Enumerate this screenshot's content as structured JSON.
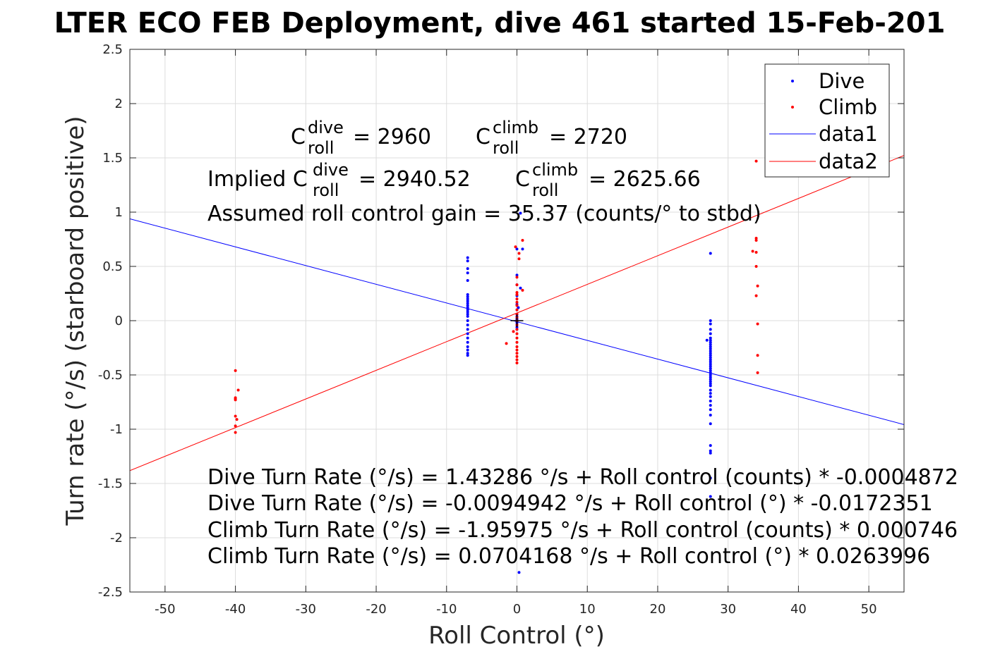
{
  "chart_data": {
    "type": "scatter",
    "title": "...LTER ECO FEB Deployment, dive 461 started 15-Feb-201...",
    "title_visible": "LTER ECO FEB Deployment, dive 461 started 15-Feb-201",
    "xlabel": "Roll Control (°)",
    "ylabel": "Turn rate (°/s) (starboard positive)",
    "xlim": [
      -55,
      55
    ],
    "ylim": [
      -2.5,
      2.5
    ],
    "xticks": [
      -50,
      -40,
      -30,
      -20,
      -10,
      0,
      10,
      20,
      30,
      40,
      50
    ],
    "xtick_labels": [
      "-50",
      "-40",
      "-30",
      "-20",
      "-10",
      "0",
      "10",
      "20",
      "30",
      "40",
      "50"
    ],
    "yticks": [
      2.5,
      2,
      1.5,
      1,
      0.5,
      0,
      -0.5,
      -1,
      -1.5,
      -2,
      -2.5
    ],
    "ytick_labels": [
      "2.5",
      "2",
      "1.5",
      "1",
      "0.5",
      "0",
      "-0.5",
      "-1",
      "-1.5",
      "-2",
      "-2.5"
    ],
    "grid": true,
    "legend_position": "top-right",
    "legend": [
      "Dive",
      "Climb",
      "data1",
      "data2"
    ],
    "colors": {
      "dive": "#0000ff",
      "climb": "#ff0000",
      "grid": "#dcdcdc",
      "axis": "#262626"
    },
    "series": [
      {
        "name": "Dive",
        "kind": "points",
        "color": "#0000ff",
        "points": [
          [
            -7,
            0.58
          ],
          [
            -7,
            0.55
          ],
          [
            -7,
            0.48
          ],
          [
            -7,
            0.44
          ],
          [
            -7,
            0.37
          ],
          [
            -7,
            0.24
          ],
          [
            -7,
            0.22
          ],
          [
            -7,
            0.2
          ],
          [
            -7,
            0.18
          ],
          [
            -7,
            0.16
          ],
          [
            -7,
            0.14
          ],
          [
            -7,
            0.12
          ],
          [
            -7,
            0.1
          ],
          [
            -7,
            0.08
          ],
          [
            -7,
            0.06
          ],
          [
            -7,
            0.04
          ],
          [
            -7,
            0.0
          ],
          [
            -7,
            -0.04
          ],
          [
            -7,
            -0.08
          ],
          [
            -7,
            -0.12
          ],
          [
            -7,
            -0.16
          ],
          [
            -7,
            -0.2
          ],
          [
            -7,
            -0.24
          ],
          [
            -7,
            -0.27
          ],
          [
            -7,
            -0.3
          ],
          [
            -7,
            -0.32
          ],
          [
            0,
            0.66
          ],
          [
            0,
            0.42
          ],
          [
            0,
            0.33
          ],
          [
            0,
            0.23
          ],
          [
            0,
            0.15
          ],
          [
            0,
            0.1
          ],
          [
            0,
            0.06
          ],
          [
            0,
            0.04
          ],
          [
            0,
            0.02
          ],
          [
            0,
            0.01
          ],
          [
            0,
            0.0
          ],
          [
            0,
            -0.01
          ],
          [
            0,
            -0.02
          ],
          [
            0,
            -0.04
          ],
          [
            0,
            -0.06
          ],
          [
            0,
            -0.08
          ],
          [
            0.5,
            0.99
          ],
          [
            0.8,
            0.66
          ],
          [
            0.5,
            0.3
          ],
          [
            0.2,
            0.12
          ],
          [
            0.3,
            -2.32
          ],
          [
            27.5,
            0.62
          ],
          [
            27.5,
            0.0
          ],
          [
            27.5,
            -0.03
          ],
          [
            27.5,
            -0.08
          ],
          [
            27.5,
            -0.12
          ],
          [
            27.5,
            -0.16
          ],
          [
            27.5,
            -0.18
          ],
          [
            27.5,
            -0.2
          ],
          [
            27.5,
            -0.22
          ],
          [
            27.5,
            -0.24
          ],
          [
            27.5,
            -0.26
          ],
          [
            27.5,
            -0.28
          ],
          [
            27.5,
            -0.3
          ],
          [
            27.5,
            -0.32
          ],
          [
            27.5,
            -0.34
          ],
          [
            27.5,
            -0.36
          ],
          [
            27.5,
            -0.38
          ],
          [
            27.5,
            -0.4
          ],
          [
            27.5,
            -0.42
          ],
          [
            27.5,
            -0.44
          ],
          [
            27.5,
            -0.46
          ],
          [
            27.5,
            -0.48
          ],
          [
            27.5,
            -0.5
          ],
          [
            27.5,
            -0.52
          ],
          [
            27.5,
            -0.54
          ],
          [
            27.5,
            -0.56
          ],
          [
            27.5,
            -0.58
          ],
          [
            27.5,
            -0.6
          ],
          [
            27.5,
            -0.64
          ],
          [
            27.5,
            -0.67
          ],
          [
            27.5,
            -0.7
          ],
          [
            27.5,
            -0.74
          ],
          [
            27.5,
            -0.78
          ],
          [
            27.5,
            -0.82
          ],
          [
            27.5,
            -0.87
          ],
          [
            27.5,
            -0.95
          ],
          [
            27.5,
            -1.15
          ],
          [
            27.5,
            -1.2
          ],
          [
            27.5,
            -1.22
          ],
          [
            27.5,
            -1.45
          ],
          [
            27.5,
            -1.62
          ],
          [
            27.0,
            -0.18
          ]
        ]
      },
      {
        "name": "Climb",
        "kind": "points",
        "color": "#ff0000",
        "points": [
          [
            -40,
            -0.46
          ],
          [
            -39.6,
            -0.64
          ],
          [
            -40,
            -0.71
          ],
          [
            -40,
            -0.72
          ],
          [
            -40,
            -0.73
          ],
          [
            -40,
            -0.88
          ],
          [
            -39.8,
            -0.91
          ],
          [
            -40,
            -0.97
          ],
          [
            -40,
            -1.03
          ],
          [
            -0.2,
            0.68
          ],
          [
            0.8,
            0.74
          ],
          [
            0.3,
            0.62
          ],
          [
            0.3,
            0.57
          ],
          [
            0,
            0.4
          ],
          [
            0,
            0.33
          ],
          [
            0.8,
            0.28
          ],
          [
            0,
            0.26
          ],
          [
            0,
            0.24
          ],
          [
            0,
            0.2
          ],
          [
            0,
            0.17
          ],
          [
            0,
            0.14
          ],
          [
            0,
            0.1
          ],
          [
            0,
            0.06
          ],
          [
            0,
            0.03
          ],
          [
            0,
            0.0
          ],
          [
            0,
            -0.04
          ],
          [
            0,
            -0.08
          ],
          [
            0,
            -0.12
          ],
          [
            0,
            -0.16
          ],
          [
            0,
            -0.2
          ],
          [
            0,
            -0.24
          ],
          [
            0,
            -0.27
          ],
          [
            0,
            -0.3
          ],
          [
            0,
            -0.33
          ],
          [
            0,
            -0.36
          ],
          [
            0,
            -0.39
          ],
          [
            -1.5,
            -0.21
          ],
          [
            -0.5,
            -0.1
          ],
          [
            34,
            1.47
          ],
          [
            34,
            0.76
          ],
          [
            34,
            0.74
          ],
          [
            33.5,
            0.64
          ],
          [
            34,
            0.63
          ],
          [
            34,
            0.5
          ],
          [
            34.2,
            0.32
          ],
          [
            34,
            0.23
          ],
          [
            34.2,
            -0.03
          ],
          [
            34.2,
            -0.32
          ],
          [
            34.2,
            -0.48
          ]
        ]
      },
      {
        "name": "data1",
        "kind": "line",
        "color": "#0000ff",
        "x": [
          -55,
          55
        ],
        "y": [
          0.9385,
          -0.9575
        ]
      },
      {
        "name": "data2",
        "kind": "line",
        "color": "#ff0000",
        "x": [
          -55,
          55
        ],
        "y": [
          -1.3816,
          1.5224
        ]
      }
    ],
    "annotations": {
      "c_dive": {
        "base": "C",
        "sup": "dive",
        "sub": "roll",
        "value": "= 2960"
      },
      "c_climb": {
        "base": "C",
        "sup": "climb",
        "sub": "roll",
        "value": "= 2720"
      },
      "implied_prefix": "Implied C",
      "implied_dive_sup": "dive",
      "implied_dive_sub": "roll",
      "implied_dive_value": "= 2940.52",
      "implied_climb": {
        "base": "C",
        "sup": "climb",
        "sub": "roll",
        "value": "= 2625.66"
      },
      "gain": "Assumed roll control gain = 35.37 (counts/° to stbd)",
      "eq1": "Dive Turn Rate (°/s) = 1.43286 °/s + Roll control (counts) * -0.0004872",
      "eq2": "Dive Turn Rate (°/s) = -0.0094942 °/s + Roll control (°) * -0.0172351",
      "eq3": "Climb Turn Rate (°/s) = -1.95975 °/s + Roll control (counts) * 0.000746",
      "eq4": "Climb Turn Rate (°/s) = 0.0704168 °/s + Roll control (°) * 0.0263996"
    },
    "center_marker": {
      "x": 0,
      "y": 0,
      "symbol": "+"
    }
  }
}
